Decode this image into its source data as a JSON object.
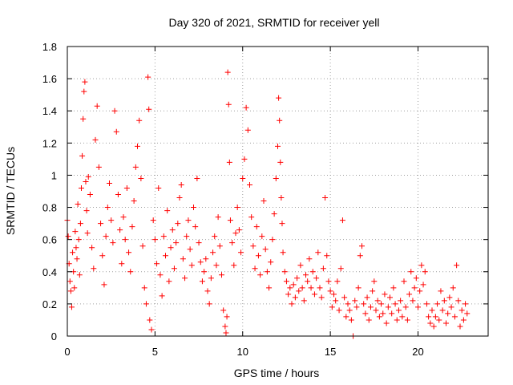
{
  "chart_data": {
    "type": "scatter",
    "title": "Day 320 of 2021, SRMTID for receiver yell",
    "xlabel": "GPS time / hours",
    "ylabel": "SRMTID / TECUs",
    "xlim": [
      0,
      24
    ],
    "ylim": [
      0,
      1.8
    ],
    "xticks": [
      0,
      5,
      10,
      15,
      20
    ],
    "yticks": [
      0,
      0.2,
      0.4,
      0.6,
      0.8,
      1,
      1.2,
      1.4,
      1.6,
      1.8
    ],
    "xtick_labels": [
      "0",
      "5",
      "10",
      "15",
      "20"
    ],
    "ytick_labels": [
      "0",
      "0.2",
      "0.4",
      "0.6",
      "0.8",
      "1",
      "1.2",
      "1.4",
      "1.6",
      "1.8"
    ],
    "grid": true,
    "marker": "+",
    "color": "#ff0000",
    "x_range": [
      0,
      22.8
    ],
    "series": [
      {
        "name": "SRMTID",
        "points": [
          [
            0.0,
            0.72
          ],
          [
            0.05,
            0.62
          ],
          [
            0.1,
            0.45
          ],
          [
            0.15,
            0.34
          ],
          [
            0.2,
            0.28
          ],
          [
            0.25,
            0.18
          ],
          [
            0.3,
            0.52
          ],
          [
            0.35,
            0.4
          ],
          [
            0.4,
            0.3
          ],
          [
            0.45,
            0.65
          ],
          [
            0.5,
            0.55
          ],
          [
            0.55,
            0.48
          ],
          [
            0.6,
            0.82
          ],
          [
            0.65,
            0.6
          ],
          [
            0.7,
            0.38
          ],
          [
            0.75,
            0.7
          ],
          [
            0.8,
            0.92
          ],
          [
            0.85,
            1.12
          ],
          [
            0.9,
            1.35
          ],
          [
            0.95,
            1.52
          ],
          [
            1.0,
            1.58
          ],
          [
            1.05,
            0.96
          ],
          [
            1.1,
            0.78
          ],
          [
            1.15,
            0.64
          ],
          [
            1.2,
            0.99
          ],
          [
            1.3,
            0.88
          ],
          [
            1.4,
            0.55
          ],
          [
            1.5,
            0.42
          ],
          [
            1.6,
            1.22
          ],
          [
            1.7,
            1.43
          ],
          [
            1.8,
            1.05
          ],
          [
            1.9,
            0.7
          ],
          [
            2.0,
            0.5
          ],
          [
            2.1,
            0.32
          ],
          [
            2.2,
            0.62
          ],
          [
            2.3,
            0.8
          ],
          [
            2.4,
            0.95
          ],
          [
            2.5,
            0.72
          ],
          [
            2.6,
            0.58
          ],
          [
            2.7,
            1.4
          ],
          [
            2.8,
            1.27
          ],
          [
            2.9,
            0.88
          ],
          [
            3.0,
            0.66
          ],
          [
            3.1,
            0.45
          ],
          [
            3.2,
            0.74
          ],
          [
            3.3,
            0.6
          ],
          [
            3.4,
            0.92
          ],
          [
            3.5,
            0.52
          ],
          [
            3.6,
            0.4
          ],
          [
            3.7,
            0.68
          ],
          [
            3.8,
            0.84
          ],
          [
            3.9,
            1.05
          ],
          [
            4.0,
            1.18
          ],
          [
            4.1,
            1.34
          ],
          [
            4.2,
            0.98
          ],
          [
            4.3,
            0.56
          ],
          [
            4.4,
            0.3
          ],
          [
            4.5,
            0.2
          ],
          [
            4.6,
            1.61
          ],
          [
            4.65,
            1.41
          ],
          [
            4.7,
            0.1
          ],
          [
            4.8,
            0.04
          ],
          [
            4.9,
            0.72
          ],
          [
            5.0,
            0.6
          ],
          [
            5.1,
            0.45
          ],
          [
            5.2,
            0.92
          ],
          [
            5.3,
            0.38
          ],
          [
            5.4,
            0.25
          ],
          [
            5.5,
            0.62
          ],
          [
            5.6,
            0.5
          ],
          [
            5.7,
            0.78
          ],
          [
            5.8,
            0.34
          ],
          [
            5.9,
            0.55
          ],
          [
            6.0,
            0.66
          ],
          [
            6.1,
            0.42
          ],
          [
            6.2,
            0.58
          ],
          [
            6.3,
            0.7
          ],
          [
            6.4,
            0.86
          ],
          [
            6.5,
            0.94
          ],
          [
            6.6,
            0.48
          ],
          [
            6.7,
            0.36
          ],
          [
            6.8,
            0.62
          ],
          [
            6.9,
            0.72
          ],
          [
            7.0,
            0.54
          ],
          [
            7.1,
            0.44
          ],
          [
            7.2,
            0.8
          ],
          [
            7.3,
            0.68
          ],
          [
            7.4,
            0.98
          ],
          [
            7.5,
            0.58
          ],
          [
            7.6,
            0.46
          ],
          [
            7.7,
            0.34
          ],
          [
            7.8,
            0.4
          ],
          [
            7.9,
            0.48
          ],
          [
            8.0,
            0.28
          ],
          [
            8.1,
            0.2
          ],
          [
            8.2,
            0.36
          ],
          [
            8.3,
            0.52
          ],
          [
            8.4,
            0.62
          ],
          [
            8.5,
            0.44
          ],
          [
            8.6,
            0.74
          ],
          [
            8.7,
            0.56
          ],
          [
            8.8,
            0.38
          ],
          [
            8.9,
            0.16
          ],
          [
            9.0,
            0.06
          ],
          [
            9.05,
            0.02
          ],
          [
            9.1,
            0.12
          ],
          [
            9.15,
            1.64
          ],
          [
            9.2,
            1.44
          ],
          [
            9.25,
            1.08
          ],
          [
            9.3,
            0.72
          ],
          [
            9.4,
            0.58
          ],
          [
            9.5,
            0.44
          ],
          [
            9.6,
            0.64
          ],
          [
            9.7,
            0.8
          ],
          [
            9.8,
            0.66
          ],
          [
            9.9,
            0.52
          ],
          [
            10.0,
            0.98
          ],
          [
            10.1,
            1.1
          ],
          [
            10.2,
            1.42
          ],
          [
            10.3,
            1.28
          ],
          [
            10.4,
            0.94
          ],
          [
            10.5,
            0.74
          ],
          [
            10.6,
            0.56
          ],
          [
            10.7,
            0.42
          ],
          [
            10.8,
            0.68
          ],
          [
            10.9,
            0.5
          ],
          [
            11.0,
            0.38
          ],
          [
            11.1,
            0.62
          ],
          [
            11.2,
            0.84
          ],
          [
            11.3,
            0.54
          ],
          [
            11.4,
            0.4
          ],
          [
            11.5,
            0.3
          ],
          [
            11.6,
            0.46
          ],
          [
            11.7,
            0.6
          ],
          [
            11.8,
            0.76
          ],
          [
            11.9,
            0.98
          ],
          [
            12.0,
            1.18
          ],
          [
            12.05,
            1.48
          ],
          [
            12.1,
            1.34
          ],
          [
            12.15,
            1.08
          ],
          [
            12.2,
            0.86
          ],
          [
            12.25,
            0.7
          ],
          [
            12.3,
            0.52
          ],
          [
            12.4,
            0.4
          ],
          [
            12.5,
            0.34
          ],
          [
            12.6,
            0.26
          ],
          [
            12.7,
            0.3
          ],
          [
            12.8,
            0.2
          ],
          [
            12.9,
            0.32
          ],
          [
            13.0,
            0.24
          ],
          [
            13.1,
            0.36
          ],
          [
            13.2,
            0.28
          ],
          [
            13.3,
            0.44
          ],
          [
            13.4,
            0.3
          ],
          [
            13.5,
            0.22
          ],
          [
            13.6,
            0.38
          ],
          [
            13.7,
            0.34
          ],
          [
            13.8,
            0.48
          ],
          [
            13.9,
            0.3
          ],
          [
            14.0,
            0.4
          ],
          [
            14.1,
            0.26
          ],
          [
            14.2,
            0.36
          ],
          [
            14.3,
            0.52
          ],
          [
            14.4,
            0.3
          ],
          [
            14.5,
            0.24
          ],
          [
            14.6,
            0.42
          ],
          [
            14.7,
            0.86
          ],
          [
            14.8,
            0.5
          ],
          [
            14.9,
            0.34
          ],
          [
            15.0,
            0.28
          ],
          [
            15.1,
            0.18
          ],
          [
            15.2,
            0.26
          ],
          [
            15.3,
            0.22
          ],
          [
            15.4,
            0.34
          ],
          [
            15.5,
            0.16
          ],
          [
            15.6,
            0.42
          ],
          [
            15.7,
            0.72
          ],
          [
            15.8,
            0.24
          ],
          [
            15.9,
            0.12
          ],
          [
            16.0,
            0.2
          ],
          [
            16.1,
            0.16
          ],
          [
            16.2,
            0.1
          ],
          [
            16.3,
            0.0
          ],
          [
            16.4,
            0.22
          ],
          [
            16.5,
            0.18
          ],
          [
            16.6,
            0.3
          ],
          [
            16.7,
            0.5
          ],
          [
            16.8,
            0.56
          ],
          [
            16.9,
            0.2
          ],
          [
            17.0,
            0.14
          ],
          [
            17.1,
            0.24
          ],
          [
            17.2,
            0.1
          ],
          [
            17.3,
            0.18
          ],
          [
            17.4,
            0.28
          ],
          [
            17.5,
            0.34
          ],
          [
            17.6,
            0.16
          ],
          [
            17.7,
            0.22
          ],
          [
            17.8,
            0.12
          ],
          [
            17.9,
            0.2
          ],
          [
            18.0,
            0.14
          ],
          [
            18.1,
            0.26
          ],
          [
            18.2,
            0.08
          ],
          [
            18.3,
            0.18
          ],
          [
            18.4,
            0.24
          ],
          [
            18.5,
            0.14
          ],
          [
            18.6,
            0.3
          ],
          [
            18.7,
            0.2
          ],
          [
            18.8,
            0.1
          ],
          [
            18.9,
            0.16
          ],
          [
            19.0,
            0.22
          ],
          [
            19.1,
            0.12
          ],
          [
            19.2,
            0.34
          ],
          [
            19.3,
            0.18
          ],
          [
            19.4,
            0.1
          ],
          [
            19.5,
            0.26
          ],
          [
            19.6,
            0.4
          ],
          [
            19.7,
            0.22
          ],
          [
            19.8,
            0.3
          ],
          [
            19.9,
            0.36
          ],
          [
            20.0,
            0.18
          ],
          [
            20.1,
            0.28
          ],
          [
            20.2,
            0.44
          ],
          [
            20.3,
            0.32
          ],
          [
            20.4,
            0.4
          ],
          [
            20.5,
            0.2
          ],
          [
            20.6,
            0.12
          ],
          [
            20.7,
            0.08
          ],
          [
            20.8,
            0.16
          ],
          [
            20.9,
            0.06
          ],
          [
            21.0,
            0.12
          ],
          [
            21.1,
            0.2
          ],
          [
            21.2,
            0.1
          ],
          [
            21.3,
            0.28
          ],
          [
            21.4,
            0.16
          ],
          [
            21.5,
            0.22
          ],
          [
            21.6,
            0.08
          ],
          [
            21.7,
            0.14
          ],
          [
            21.8,
            0.24
          ],
          [
            21.9,
            0.18
          ],
          [
            22.0,
            0.3
          ],
          [
            22.1,
            0.12
          ],
          [
            22.2,
            0.44
          ],
          [
            22.3,
            0.22
          ],
          [
            22.4,
            0.06
          ],
          [
            22.5,
            0.16
          ],
          [
            22.6,
            0.1
          ],
          [
            22.7,
            0.2
          ],
          [
            22.8,
            0.14
          ]
        ]
      }
    ]
  }
}
